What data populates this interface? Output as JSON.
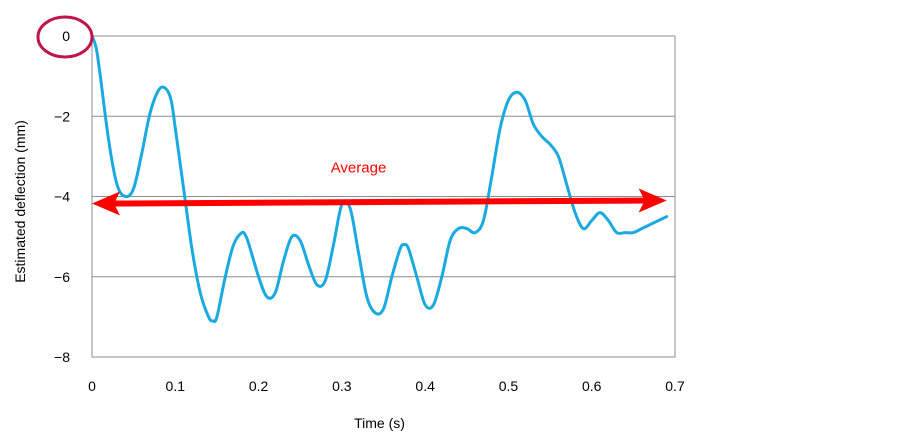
{
  "chart_data": {
    "type": "line",
    "xlabel": "Time (s)",
    "ylabel": "Estimated deflection (mm)",
    "xlim": [
      0,
      0.7
    ],
    "ylim": [
      -8,
      0
    ],
    "x_ticks": [
      0,
      0.1,
      0.2,
      0.3,
      0.4,
      0.5,
      0.6,
      0.7
    ],
    "y_ticks": [
      0,
      -2,
      -4,
      -6,
      -8
    ],
    "x_tick_labels": [
      "0",
      "0.1",
      "0.2",
      "0.3",
      "0.4",
      "0.5",
      "0.6",
      "0.7"
    ],
    "y_tick_labels": [
      "0",
      "−2",
      "−4",
      "−6",
      "−8"
    ],
    "grid": "horizontal",
    "series": [
      {
        "color": "#1aa9e0",
        "x": [
          0,
          0.005,
          0.01,
          0.02,
          0.03,
          0.04,
          0.05,
          0.06,
          0.07,
          0.08,
          0.088,
          0.095,
          0.1,
          0.11,
          0.12,
          0.13,
          0.14,
          0.145,
          0.15,
          0.16,
          0.17,
          0.18,
          0.185,
          0.19,
          0.2,
          0.21,
          0.22,
          0.23,
          0.24,
          0.25,
          0.26,
          0.27,
          0.28,
          0.29,
          0.3,
          0.31,
          0.32,
          0.33,
          0.34,
          0.35,
          0.36,
          0.37,
          0.375,
          0.38,
          0.39,
          0.4,
          0.41,
          0.42,
          0.43,
          0.44,
          0.45,
          0.46,
          0.47,
          0.48,
          0.49,
          0.5,
          0.51,
          0.52,
          0.53,
          0.54,
          0.55,
          0.56,
          0.57,
          0.58,
          0.59,
          0.6,
          0.61,
          0.62,
          0.63,
          0.64,
          0.65,
          0.66,
          0.67,
          0.68,
          0.69
        ],
        "y": [
          0,
          -0.3,
          -1.0,
          -2.6,
          -3.7,
          -4.0,
          -3.8,
          -2.9,
          -1.9,
          -1.35,
          -1.3,
          -1.6,
          -2.3,
          -3.8,
          -5.3,
          -6.4,
          -7.0,
          -7.1,
          -7.0,
          -6.0,
          -5.2,
          -4.9,
          -5.0,
          -5.3,
          -6.0,
          -6.5,
          -6.4,
          -5.6,
          -5.0,
          -5.1,
          -5.7,
          -6.2,
          -6.1,
          -5.2,
          -4.2,
          -4.3,
          -5.4,
          -6.5,
          -6.9,
          -6.8,
          -6.0,
          -5.3,
          -5.2,
          -5.3,
          -6.0,
          -6.7,
          -6.7,
          -6.0,
          -5.1,
          -4.8,
          -4.8,
          -4.9,
          -4.6,
          -3.5,
          -2.3,
          -1.6,
          -1.4,
          -1.6,
          -2.2,
          -2.5,
          -2.7,
          -3.0,
          -3.7,
          -4.4,
          -4.8,
          -4.6,
          -4.4,
          -4.6,
          -4.9,
          -4.9,
          -4.9,
          -4.8,
          -4.7,
          -4.6,
          -4.5
        ]
      }
    ],
    "average": {
      "y": -4.15,
      "x_start": 0.0,
      "x_end": 0.69,
      "label": "Average",
      "color": "#ff0000"
    },
    "highlight": {
      "label": "0",
      "color": "#c0144c"
    }
  }
}
